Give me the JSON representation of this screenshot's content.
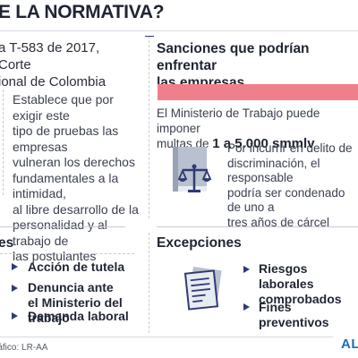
{
  "header": {
    "title": "E LA NORMATIVA?"
  },
  "case": {
    "reference_lines": [
      "a T-583 de 2017, Corte",
      "ional de Colombia"
    ],
    "description_lines": [
      "Establece que por exigir este",
      "tipo de pruebas las empresas",
      "vulneran los derechos",
      "fundamentales a la intimidad,",
      "al libre desarrollo de la",
      "personalidad y al trabajo de",
      "las postulantes"
    ]
  },
  "sanctions": {
    "heading_lines": [
      "Sanciones que podrían enfrentar",
      "las empresas"
    ],
    "ministry_line1": "El Ministerio de Trabajo puede imponer",
    "ministry_prefix": "multas de ",
    "ministry_amount": "1 a 5.000 smmlv",
    "penal_lines": [
      "Por incurrir en delito de",
      "discriminación, el responsable",
      "podría ser condenado de uno a",
      "tres años de cárcel"
    ],
    "icon": "law-book-scales-icon"
  },
  "actions": {
    "heading": "es",
    "items": [
      {
        "lines": [
          "Acción de tutela"
        ]
      },
      {
        "lines": [
          "Denuncia ante",
          "el Ministerio del trabajo"
        ]
      },
      {
        "lines": [
          "Demanda laboral"
        ]
      }
    ]
  },
  "exceptions": {
    "heading": "Excepciones",
    "icon": "document-icon",
    "items": [
      {
        "lines": [
          "Riesgos laborales",
          "comprobados"
        ]
      },
      {
        "lines": [
          "Fines preventivos"
        ]
      }
    ]
  },
  "footer": {
    "source": "ráfico: LR-AA",
    "logo": "AL"
  },
  "colors": {
    "accent": "#f07f8c",
    "navy": "#2f3b73",
    "logo": "#1b6fb8"
  }
}
